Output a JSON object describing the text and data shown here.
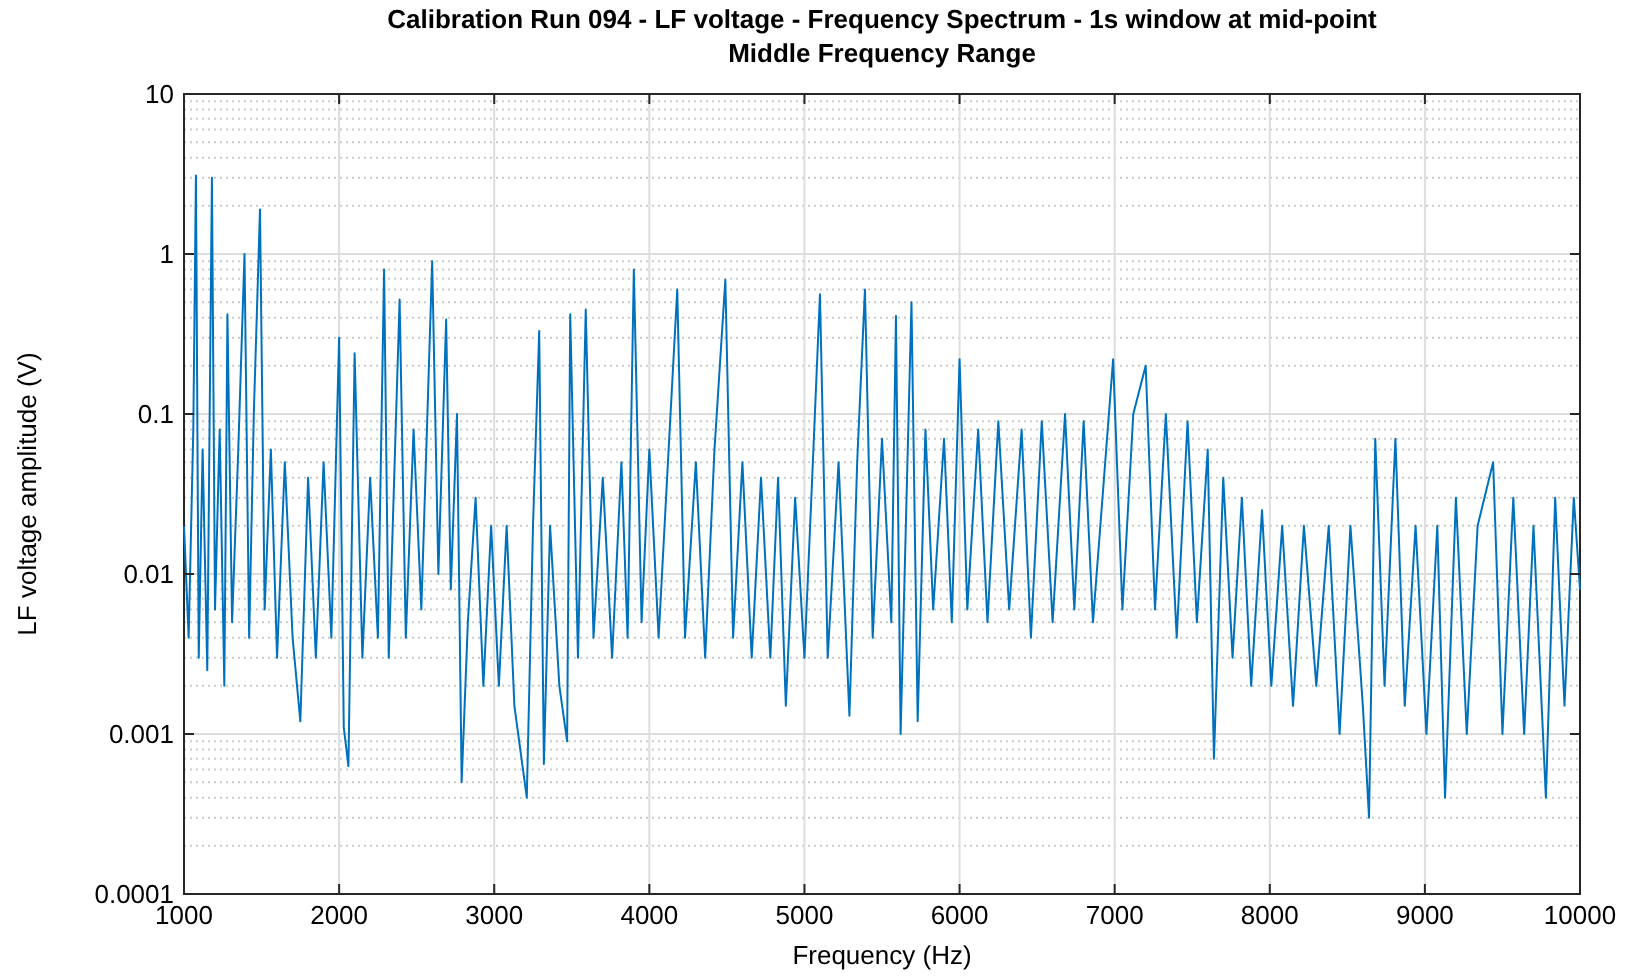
{
  "chart_data": {
    "type": "line",
    "title": "Calibration Run 094 - LF voltage - Frequency Spectrum - 1s window at mid-point",
    "subtitle": "Middle Frequency Range",
    "xlabel": "Frequency (Hz)",
    "ylabel": "LF voltage amplitude (V)",
    "log": "y",
    "grid": true,
    "marker": "none",
    "line_style": "solid",
    "xlim": [
      1000,
      10000
    ],
    "xticks": [
      1000,
      2000,
      3000,
      4000,
      5000,
      6000,
      7000,
      8000,
      9000,
      10000
    ],
    "ylim": [
      0.0001,
      10
    ],
    "yticks": [
      0.0001,
      0.001,
      0.01,
      0.1,
      1,
      10
    ],
    "series": [
      {
        "color": "#0072bd",
        "x": [
          1000,
          1030,
          1060,
          1077,
          1095,
          1120,
          1150,
          1180,
          1200,
          1230,
          1260,
          1280,
          1310,
          1350,
          1390,
          1420,
          1450,
          1490,
          1520,
          1560,
          1600,
          1650,
          1700,
          1750,
          1800,
          1850,
          1900,
          1950,
          2000,
          2030,
          2060,
          2100,
          2150,
          2200,
          2250,
          2290,
          2320,
          2390,
          2430,
          2480,
          2530,
          2600,
          2640,
          2690,
          2720,
          2760,
          2790,
          2830,
          2880,
          2930,
          2980,
          3030,
          3080,
          3130,
          3210,
          3250,
          3290,
          3320,
          3360,
          3420,
          3470,
          3490,
          3540,
          3590,
          3640,
          3700,
          3760,
          3820,
          3860,
          3900,
          3950,
          4000,
          4060,
          4120,
          4180,
          4230,
          4300,
          4360,
          4420,
          4490,
          4540,
          4600,
          4660,
          4720,
          4780,
          4830,
          4880,
          4940,
          5000,
          5050,
          5100,
          5150,
          5220,
          5290,
          5340,
          5390,
          5440,
          5500,
          5560,
          5590,
          5620,
          5690,
          5730,
          5780,
          5830,
          5900,
          5950,
          6000,
          6050,
          6120,
          6180,
          6250,
          6320,
          6400,
          6460,
          6530,
          6600,
          6680,
          6740,
          6800,
          6860,
          6990,
          7050,
          7120,
          7200,
          7260,
          7330,
          7400,
          7470,
          7530,
          7600,
          7640,
          7700,
          7760,
          7820,
          7880,
          7950,
          8010,
          8080,
          8150,
          8220,
          8300,
          8380,
          8450,
          8520,
          8600,
          8640,
          8680,
          8740,
          8810,
          8870,
          8940,
          9010,
          9080,
          9130,
          9200,
          9270,
          9340,
          9440,
          9500,
          9570,
          9640,
          9700,
          9780,
          9840,
          9900,
          9960,
          10000
        ],
        "values": [
          0.02,
          0.004,
          0.08,
          3.1,
          0.003,
          0.06,
          0.0025,
          3.0,
          0.006,
          0.08,
          0.002,
          0.42,
          0.005,
          0.06,
          1.0,
          0.004,
          0.1,
          1.9,
          0.006,
          0.06,
          0.003,
          0.05,
          0.004,
          0.0012,
          0.04,
          0.003,
          0.05,
          0.004,
          0.3,
          0.0011,
          0.00063,
          0.24,
          0.003,
          0.04,
          0.004,
          0.8,
          0.003,
          0.52,
          0.004,
          0.08,
          0.006,
          0.9,
          0.01,
          0.39,
          0.008,
          0.1,
          0.0005,
          0.005,
          0.03,
          0.002,
          0.02,
          0.002,
          0.02,
          0.0015,
          0.0004,
          0.02,
          0.33,
          0.00065,
          0.02,
          0.002,
          0.0009,
          0.42,
          0.003,
          0.45,
          0.004,
          0.04,
          0.003,
          0.05,
          0.004,
          0.8,
          0.005,
          0.06,
          0.004,
          0.05,
          0.6,
          0.004,
          0.05,
          0.003,
          0.06,
          0.69,
          0.004,
          0.05,
          0.003,
          0.04,
          0.003,
          0.04,
          0.0015,
          0.03,
          0.003,
          0.04,
          0.56,
          0.003,
          0.05,
          0.0013,
          0.05,
          0.6,
          0.004,
          0.07,
          0.005,
          0.41,
          0.001,
          0.5,
          0.0012,
          0.08,
          0.006,
          0.07,
          0.005,
          0.22,
          0.006,
          0.08,
          0.005,
          0.09,
          0.006,
          0.08,
          0.004,
          0.09,
          0.005,
          0.1,
          0.006,
          0.09,
          0.005,
          0.22,
          0.006,
          0.1,
          0.2,
          0.006,
          0.1,
          0.004,
          0.09,
          0.005,
          0.06,
          0.0007,
          0.04,
          0.003,
          0.03,
          0.002,
          0.025,
          0.002,
          0.02,
          0.0015,
          0.02,
          0.002,
          0.02,
          0.001,
          0.02,
          0.0015,
          0.0003,
          0.07,
          0.002,
          0.07,
          0.0015,
          0.02,
          0.001,
          0.02,
          0.0004,
          0.03,
          0.001,
          0.02,
          0.05,
          0.001,
          0.03,
          0.001,
          0.02,
          0.0004,
          0.03,
          0.0015,
          0.03,
          0.008
        ]
      }
    ]
  }
}
